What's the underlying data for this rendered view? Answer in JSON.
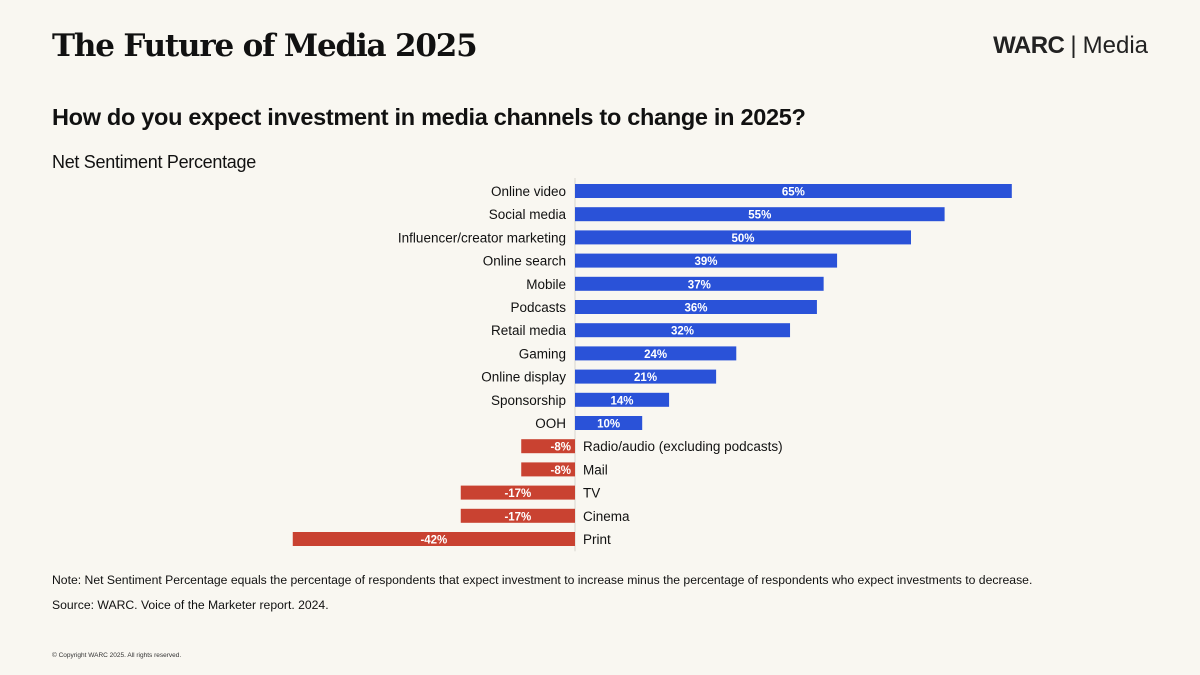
{
  "header": {
    "title": "The Future of Media 2025",
    "logo_brand": "WARC",
    "logo_separator": "|",
    "logo_section": "Media"
  },
  "chart_data": {
    "type": "bar",
    "orientation": "horizontal",
    "title": "How do you expect investment in media channels to change in 2025?",
    "subtitle": "Net Sentiment Percentage",
    "xlabel": "",
    "ylabel": "",
    "categories": [
      "Online video",
      "Social media",
      "Influencer/creator marketing",
      "Online search",
      "Mobile",
      "Podcasts",
      "Retail media",
      "Gaming",
      "Online display",
      "Sponsorship",
      "OOH",
      "Radio/audio (excluding podcasts)",
      "Mail",
      "TV",
      "Cinema",
      "Print"
    ],
    "values": [
      65,
      55,
      50,
      39,
      37,
      36,
      32,
      24,
      21,
      14,
      10,
      -8,
      -8,
      -17,
      -17,
      -42
    ],
    "data_labels": [
      "65%",
      "55%",
      "50%",
      "39%",
      "37%",
      "36%",
      "32%",
      "24%",
      "21%",
      "14%",
      "10%",
      "-8%",
      "-8%",
      "-17%",
      "-17%",
      "-42%"
    ],
    "xlim": [
      -42,
      65
    ],
    "grid": false,
    "legend": "none",
    "colors": {
      "positive": "#2a52d8",
      "negative": "#c94231",
      "axis": "#e2e0da"
    }
  },
  "footer": {
    "note": "Note: Net Sentiment Percentage equals the percentage of respondents that expect investment to increase minus the percentage of respondents who expect investments to decrease.",
    "source": "Source: WARC. Voice of the Marketer report. 2024.",
    "copyright": "© Copyright WARC 2025. All rights reserved."
  }
}
